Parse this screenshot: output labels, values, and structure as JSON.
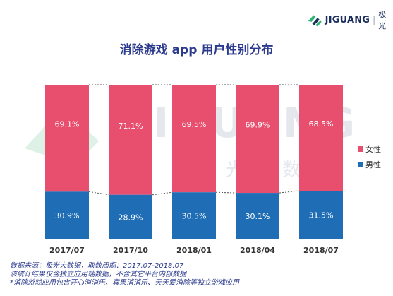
{
  "brand": {
    "name": "JIGUANG",
    "separator": "|",
    "cn": "极光"
  },
  "watermark": {
    "text": "JIGUANG",
    "cn": "极光大数据"
  },
  "title": "消除游戏 app 用户性别分布",
  "chart_data": {
    "type": "bar",
    "stacked": true,
    "title": "消除游戏 app 用户性别分布",
    "categories": [
      "2017/07",
      "2017/10",
      "2018/01",
      "2018/04",
      "2018/07"
    ],
    "series": [
      {
        "name": "男性",
        "values": [
          30.9,
          28.9,
          30.5,
          30.1,
          31.5
        ],
        "labels": [
          "30.9%",
          "28.9%",
          "30.5%",
          "30.1%",
          "31.5%"
        ],
        "color": "#1f6db5"
      },
      {
        "name": "女性",
        "values": [
          69.1,
          71.1,
          69.5,
          69.9,
          68.5
        ],
        "labels": [
          "69.1%",
          "71.1%",
          "69.5%",
          "69.9%",
          "68.5%"
        ],
        "color": "#e84e6d"
      }
    ],
    "legend": [
      "女性",
      "男性"
    ],
    "legend_position": "right",
    "ylim": [
      0,
      100
    ],
    "unit": "%",
    "connector_lines": "dotted"
  },
  "footnotes": [
    "数据来源：极光大数据，取数周期：2017.07-2018.07",
    "该统计结果仅含独立应用端数据，不含其它平台内部数据",
    "*消除游戏应用包含开心消消乐、宾果消消乐、天天爱消除等独立游戏应用"
  ],
  "colors": {
    "title": "#2b3a8c",
    "female": "#e84e6d",
    "male": "#1f6db5"
  }
}
